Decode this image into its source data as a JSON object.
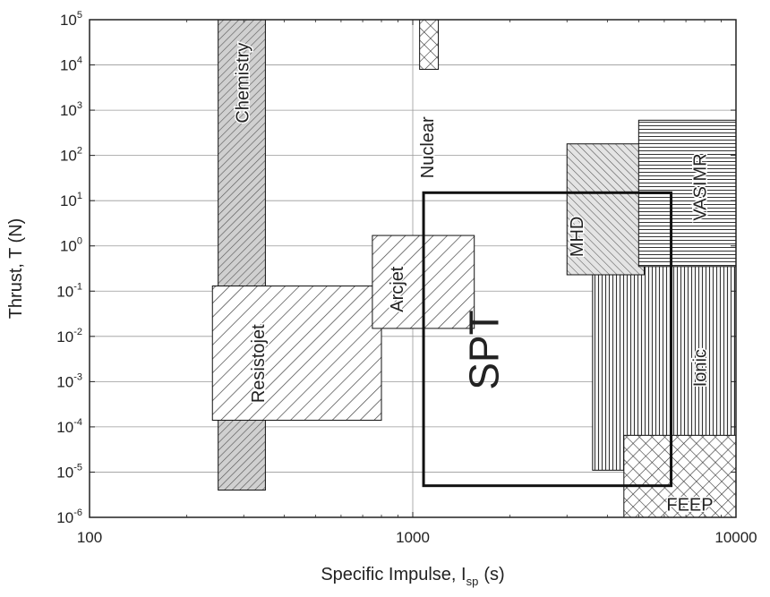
{
  "chart_data": {
    "type": "region",
    "xlabel": "Specific Impulse, I",
    "xlabel_sub": "sp",
    "xlabel_unit": "(s)",
    "ylabel": "Thrust, T (N)",
    "xscale": "log",
    "yscale": "log",
    "xlim": [
      100,
      10000
    ],
    "ylim": [
      1e-06,
      100000.0
    ],
    "grid": true,
    "xticks": [
      {
        "value": 100,
        "label": "100"
      },
      {
        "value": 1000,
        "label": "1000"
      },
      {
        "value": 10000,
        "label": "10000"
      }
    ],
    "yticks": [
      {
        "value": 1e-06,
        "base": "10",
        "exp": "-6"
      },
      {
        "value": 1e-05,
        "base": "10",
        "exp": "-5"
      },
      {
        "value": 0.0001,
        "base": "10",
        "exp": "-4"
      },
      {
        "value": 0.001,
        "base": "10",
        "exp": "-3"
      },
      {
        "value": 0.01,
        "base": "10",
        "exp": "-2"
      },
      {
        "value": 0.1,
        "base": "10",
        "exp": "-1"
      },
      {
        "value": 1,
        "base": "10",
        "exp": "0"
      },
      {
        "value": 10,
        "base": "10",
        "exp": "1"
      },
      {
        "value": 100,
        "base": "10",
        "exp": "2"
      },
      {
        "value": 1000,
        "base": "10",
        "exp": "3"
      },
      {
        "value": 10000,
        "base": "10",
        "exp": "4"
      },
      {
        "value": 100000,
        "base": "10",
        "exp": "5"
      }
    ],
    "regions": [
      {
        "name": "Chemistry",
        "isp": [
          250,
          350
        ],
        "thrust": [
          4e-06,
          100000.0
        ],
        "pattern": "diag-fine"
      },
      {
        "name": "Resistojet",
        "isp": [
          240,
          800
        ],
        "thrust": [
          0.00014,
          0.13
        ],
        "pattern": "diag-right"
      },
      {
        "name": "Arcjet",
        "isp": [
          750,
          1550
        ],
        "thrust": [
          0.015,
          1.7
        ],
        "pattern": "diag-right"
      },
      {
        "name": "Nuclear",
        "isp": [
          1050,
          1200
        ],
        "thrust": [
          8000,
          100000.0
        ],
        "pattern": "crosshatch"
      },
      {
        "name": "MHD",
        "isp": [
          3000,
          5200
        ],
        "thrust": [
          0.23,
          180
        ],
        "pattern": "diag-left"
      },
      {
        "name": "VASIMR",
        "isp": [
          5000,
          10000
        ],
        "thrust": [
          0.35,
          600
        ],
        "pattern": "horizontal"
      },
      {
        "name": "Ionic",
        "isp": [
          3600,
          9900
        ],
        "thrust": [
          1.1e-05,
          0.7
        ],
        "pattern": "vertical"
      },
      {
        "name": "FEEP",
        "isp": [
          4500,
          10000
        ],
        "thrust": [
          1e-06,
          6.5e-05
        ],
        "pattern": "crosshatch"
      },
      {
        "name": "SPT",
        "isp": [
          1080,
          6300
        ],
        "thrust": [
          5e-06,
          15
        ],
        "pattern": "outline"
      }
    ]
  }
}
